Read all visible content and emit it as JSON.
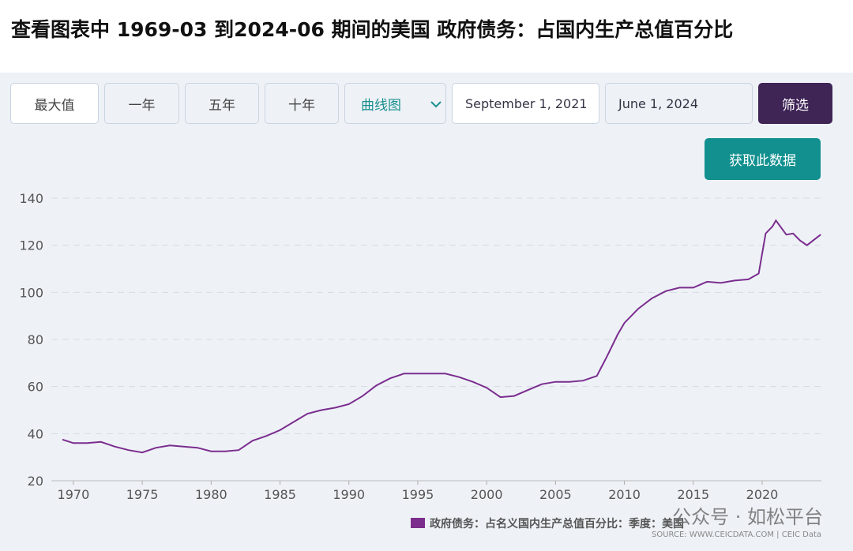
{
  "title": "查看图表中 1969-03 到2024-06 期间的美国 政府债务：占国内生产总值百分比",
  "controls": {
    "ranges": [
      "最大值",
      "一年",
      "五年",
      "十年"
    ],
    "chart_type": "曲线图",
    "start_date": "September 1, 2021",
    "end_date": "June 1, 2024",
    "filter": "筛选",
    "download": "获取此数据"
  },
  "chart_data": {
    "type": "line",
    "x": [
      1969.2,
      1970,
      1971,
      1972,
      1973,
      1974,
      1975,
      1976,
      1977,
      1978,
      1979,
      1980,
      1981,
      1982,
      1983,
      1984,
      1985,
      1986,
      1987,
      1988,
      1989,
      1990,
      1991,
      1992,
      1993,
      1994,
      1995,
      1996,
      1997,
      1998,
      1999,
      2000,
      2001,
      2002,
      2003,
      2004,
      2005,
      2006,
      2007,
      2008,
      2008.75,
      2009.5,
      2010,
      2011,
      2012,
      2013,
      2014,
      2015,
      2016,
      2017,
      2018,
      2019,
      2019.75,
      2020.25,
      2020.75,
      2021,
      2021.75,
      2022.25,
      2022.75,
      2023.25,
      2024.25
    ],
    "series": [
      {
        "name": "政府债务：占名义国内生产总值百分比：季度：美国",
        "color": "#7b2d8e",
        "values": [
          37.5,
          36,
          36,
          36.5,
          34.5,
          33,
          32,
          34,
          35,
          34.5,
          34,
          32.5,
          32.5,
          33,
          37,
          39,
          41.5,
          45,
          48.5,
          50,
          51,
          52.5,
          56,
          60.5,
          63.5,
          65.5,
          65.5,
          65.5,
          65.5,
          64,
          62,
          59.5,
          55.5,
          56,
          58.5,
          61,
          62,
          62,
          62.5,
          64.5,
          73,
          82,
          87,
          93,
          97.5,
          100.5,
          102,
          102,
          104.5,
          104,
          105,
          105.5,
          108,
          125,
          128,
          130.5,
          124.5,
          125,
          122,
          120,
          124.5
        ]
      }
    ],
    "xlim": [
      1968.4,
      2024.3
    ],
    "xticks": [
      1970,
      1975,
      1980,
      1985,
      1990,
      1995,
      2000,
      2005,
      2010,
      2015,
      2020
    ],
    "ylim": [
      20,
      140
    ],
    "yticks": [
      20,
      40,
      60,
      80,
      100,
      120,
      140
    ],
    "grid": true,
    "source": "SOURCE: WWW.CEICDATA.COM | CEIC Data",
    "watermark": "公众号 · 如松平台"
  }
}
